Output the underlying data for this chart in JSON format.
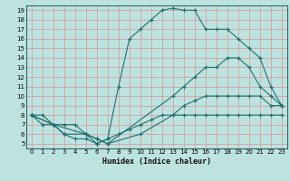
{
  "xlabel": "Humidex (Indice chaleur)",
  "xlim": [
    -0.5,
    23.5
  ],
  "ylim": [
    4.5,
    19.5
  ],
  "xticks": [
    0,
    1,
    2,
    3,
    4,
    5,
    6,
    7,
    8,
    9,
    10,
    11,
    12,
    13,
    14,
    15,
    16,
    17,
    18,
    19,
    20,
    21,
    22,
    23
  ],
  "yticks": [
    5,
    6,
    7,
    8,
    9,
    10,
    11,
    12,
    13,
    14,
    15,
    16,
    17,
    18,
    19
  ],
  "bg_color": "#bde3e0",
  "line_color": "#1e7070",
  "grid_color": "#d4a0a0",
  "line1_x": [
    0,
    1,
    2,
    3,
    4,
    5,
    6,
    7,
    8,
    9,
    10,
    11,
    12,
    13,
    14,
    15,
    16,
    17,
    18,
    19,
    20,
    21,
    22,
    23
  ],
  "line1_y": [
    8,
    7,
    7,
    6,
    5.5,
    5.5,
    5,
    5.5,
    6,
    6.5,
    7,
    7.5,
    8,
    8,
    8,
    8,
    8,
    8,
    8,
    8,
    8,
    8,
    8,
    8
  ],
  "line2_x": [
    0,
    1,
    2,
    3,
    4,
    5,
    6,
    7,
    8,
    9,
    10,
    11,
    12,
    13,
    14,
    15,
    16,
    17,
    18,
    19,
    20,
    21,
    22,
    23
  ],
  "line2_y": [
    8,
    8,
    7,
    7,
    7,
    6,
    5,
    5.5,
    11,
    16,
    17,
    18,
    19,
    19.2,
    19,
    19,
    17,
    17,
    17,
    16,
    15,
    14,
    11,
    9
  ],
  "line3_x": [
    0,
    2,
    5,
    6,
    7,
    13,
    14,
    15,
    16,
    17,
    18,
    19,
    20,
    21,
    22,
    23
  ],
  "line3_y": [
    8,
    7,
    6,
    5.5,
    5,
    10,
    11,
    12,
    13,
    13,
    14,
    14,
    13,
    11,
    10,
    9
  ],
  "line4_x": [
    0,
    2,
    3,
    5,
    6,
    7,
    10,
    13,
    14,
    15,
    16,
    17,
    18,
    19,
    20,
    21,
    22,
    23
  ],
  "line4_y": [
    8,
    7,
    6,
    6,
    5.5,
    5,
    6,
    8,
    9,
    9.5,
    10,
    10,
    10,
    10,
    10,
    10,
    9,
    9
  ]
}
